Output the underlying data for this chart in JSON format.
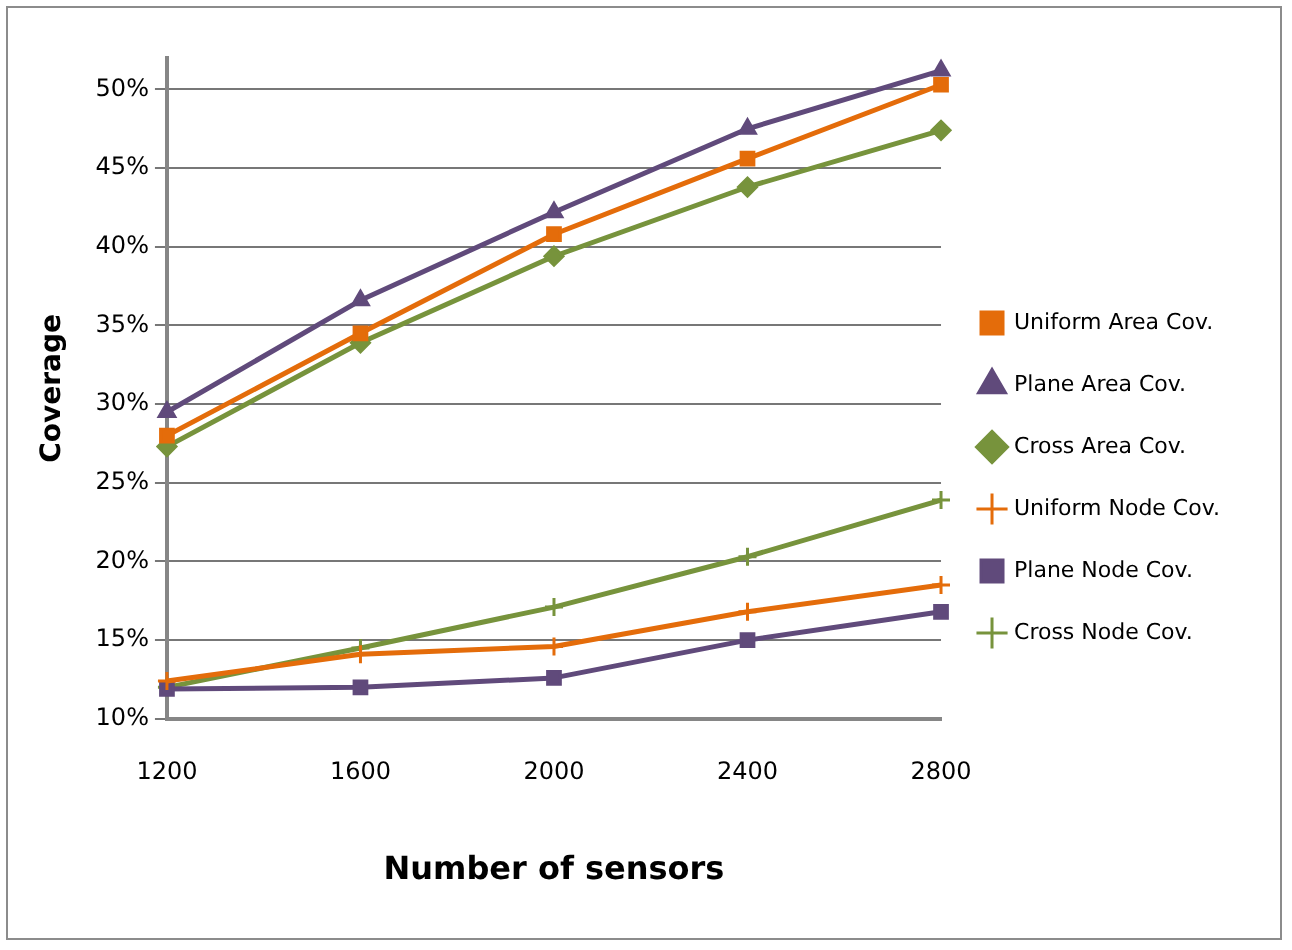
{
  "chart_data": {
    "type": "line",
    "xlabel": "Number of sensors",
    "ylabel": "Coverage",
    "categories": [
      "1200",
      "1600",
      "2000",
      "2400",
      "2800"
    ],
    "series": [
      {
        "name": "Uniform Area Cov.",
        "color": "#e46c0a",
        "marker": "square",
        "values": [
          28.0,
          34.5,
          40.8,
          45.6,
          50.3
        ]
      },
      {
        "name": "Plane Area Cov.",
        "color": "#604a7b",
        "marker": "triangle",
        "values": [
          29.5,
          36.6,
          42.2,
          47.5,
          51.2
        ]
      },
      {
        "name": "Cross Area Cov.",
        "color": "#77933c",
        "marker": "diamond",
        "values": [
          27.3,
          33.9,
          39.4,
          43.8,
          47.4
        ]
      },
      {
        "name": "Uniform Node Cov.",
        "color": "#e46c0a",
        "marker": "cross",
        "values": [
          12.4,
          14.1,
          14.6,
          16.8,
          18.5
        ]
      },
      {
        "name": "Plane Node Cov.",
        "color": "#604a7b",
        "marker": "square",
        "values": [
          11.9,
          12.0,
          12.6,
          15.0,
          16.8
        ]
      },
      {
        "name": "Cross Node Cov.",
        "color": "#77933c",
        "marker": "cross",
        "values": [
          12.0,
          14.5,
          17.1,
          20.3,
          23.9
        ]
      }
    ],
    "ylim": [
      10,
      52
    ],
    "yticks": [
      {
        "value": 10,
        "label": "10%"
      },
      {
        "value": 15,
        "label": "15%"
      },
      {
        "value": 20,
        "label": "20%"
      },
      {
        "value": 25,
        "label": "25%"
      },
      {
        "value": 30,
        "label": "30%"
      },
      {
        "value": 35,
        "label": "35%"
      },
      {
        "value": 40,
        "label": "40%"
      },
      {
        "value": 45,
        "label": "45%"
      },
      {
        "value": 50,
        "label": "50%"
      }
    ],
    "grid": "y",
    "legend": "right",
    "line_style": "solid"
  }
}
